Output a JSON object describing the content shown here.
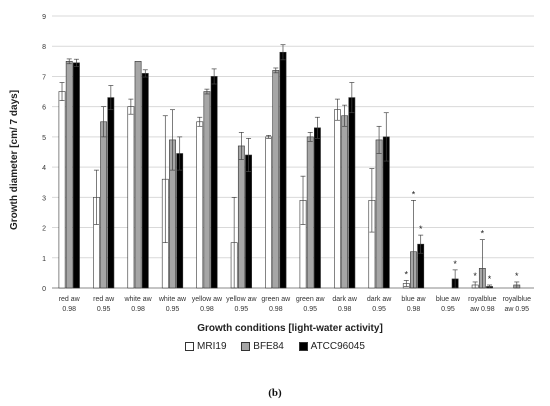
{
  "chart_data": {
    "type": "bar",
    "title": "",
    "ylabel": "Growth diameter [cm/ 7 days]",
    "xlabel": "Growth conditions [light-water activity]",
    "ylim": [
      0,
      9
    ],
    "yticks": [
      0,
      1,
      2,
      3,
      4,
      5,
      6,
      7,
      8,
      9
    ],
    "grid": true,
    "legend_position": "bottom",
    "categories": [
      [
        "red aw",
        "0.98"
      ],
      [
        "red aw",
        "0.95"
      ],
      [
        "white aw",
        "0.98"
      ],
      [
        "white aw",
        "0.95"
      ],
      [
        "yellow aw",
        "0.98"
      ],
      [
        "yellow aw",
        "0.95"
      ],
      [
        "green aw",
        "0.98"
      ],
      [
        "green aw",
        "0.95"
      ],
      [
        "dark aw",
        "0.98"
      ],
      [
        "dark aw",
        "0.95"
      ],
      [
        "blue aw",
        "0.98"
      ],
      [
        "blue aw",
        "0.95"
      ],
      [
        "royalblue",
        "aw 0.98"
      ],
      [
        "royalblue",
        "aw 0.95"
      ]
    ],
    "series": [
      {
        "name": "MRI19",
        "color": "#ffffff",
        "values": [
          6.5,
          3.0,
          6.0,
          3.6,
          5.5,
          1.5,
          5.0,
          2.9,
          5.9,
          2.9,
          0.15,
          0,
          0.1,
          0
        ],
        "errors": [
          0.3,
          0.9,
          0.25,
          2.1,
          0.15,
          1.5,
          0.05,
          0.8,
          0.35,
          1.05,
          0.1,
          0,
          0.1,
          0
        ],
        "stars": [
          false,
          false,
          false,
          false,
          false,
          false,
          false,
          false,
          false,
          false,
          true,
          false,
          true,
          false
        ]
      },
      {
        "name": "BFE84",
        "color": "#a6a6a6",
        "values": [
          7.5,
          5.5,
          7.5,
          4.9,
          6.5,
          4.7,
          7.2,
          5.0,
          5.7,
          4.9,
          1.2,
          0,
          0.65,
          0.1
        ],
        "errors": [
          0.08,
          0.5,
          0,
          1.0,
          0.08,
          0.45,
          0.08,
          0.15,
          0.35,
          0.45,
          1.7,
          0,
          0.95,
          0.1
        ],
        "stars": [
          false,
          false,
          false,
          false,
          false,
          false,
          false,
          false,
          false,
          false,
          true,
          false,
          true,
          true
        ]
      },
      {
        "name": "ATCC96045",
        "color": "#000000",
        "values": [
          7.45,
          6.3,
          7.1,
          4.45,
          7.0,
          4.4,
          7.8,
          5.3,
          6.3,
          5.0,
          1.45,
          0.3,
          0.05,
          0
        ],
        "errors": [
          0.12,
          0.4,
          0.12,
          0.55,
          0.25,
          0.55,
          0.25,
          0.35,
          0.5,
          0.8,
          0.3,
          0.3,
          0.05,
          0
        ],
        "stars": [
          false,
          false,
          false,
          false,
          false,
          false,
          false,
          false,
          false,
          false,
          true,
          true,
          true,
          false
        ]
      }
    ],
    "annotation_mark": "*",
    "caption": "(b)"
  }
}
